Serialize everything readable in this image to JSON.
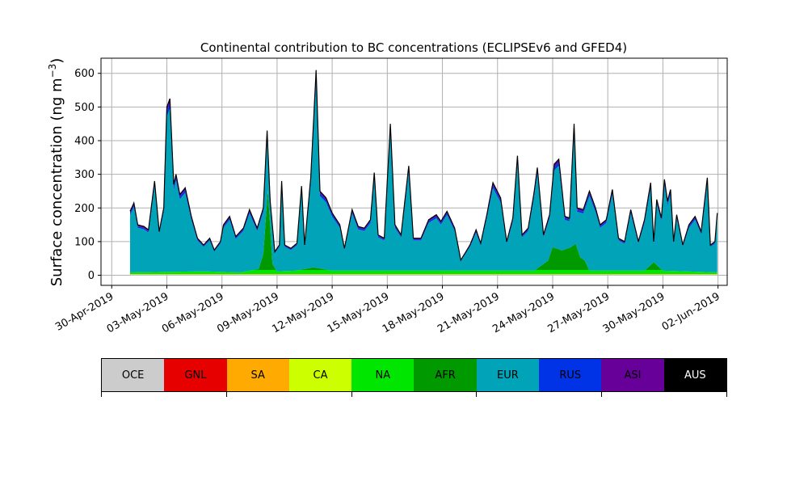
{
  "chart_data": {
    "type": "area",
    "title": "Continental contribution to BC concentrations (ECLIPSEv6 and GFED4)",
    "ylabel": "Surface concentration (ng m",
    "ylabel_sup": "−3",
    "ylabel_tail": ")",
    "xlabel": "",
    "ylim": [
      -30,
      645
    ],
    "xlim": [
      "2019-04-29T10:00",
      "2019-06-02T12:00"
    ],
    "yticks": [
      0,
      100,
      200,
      300,
      400,
      500,
      600
    ],
    "xticks": [
      "2019-04-30",
      "2019-05-03",
      "2019-05-06",
      "2019-05-09",
      "2019-05-12",
      "2019-05-15",
      "2019-05-18",
      "2019-05-21",
      "2019-05-24",
      "2019-05-27",
      "2019-05-30",
      "2019-06-02"
    ],
    "xtick_labels": [
      "30-Apr-2019",
      "03-May-2019",
      "06-May-2019",
      "09-May-2019",
      "12-May-2019",
      "15-May-2019",
      "18-May-2019",
      "21-May-2019",
      "24-May-2019",
      "27-May-2019",
      "30-May-2019",
      "02-Jun-2019"
    ],
    "grid": true,
    "total_profile": [
      [
        "2019-05-01T00:00",
        190
      ],
      [
        "2019-05-01T05:00",
        215
      ],
      [
        "2019-05-01T10:00",
        150
      ],
      [
        "2019-05-01T18:00",
        145
      ],
      [
        "2019-05-02T00:00",
        135
      ],
      [
        "2019-05-02T08:00",
        280
      ],
      [
        "2019-05-02T14:00",
        130
      ],
      [
        "2019-05-02T20:00",
        200
      ],
      [
        "2019-05-03T00:00",
        500
      ],
      [
        "2019-05-03T04:00",
        525
      ],
      [
        "2019-05-03T09:00",
        270
      ],
      [
        "2019-05-03T12:00",
        300
      ],
      [
        "2019-05-03T17:00",
        240
      ],
      [
        "2019-05-04T00:00",
        260
      ],
      [
        "2019-05-04T08:00",
        175
      ],
      [
        "2019-05-04T16:00",
        110
      ],
      [
        "2019-05-05T00:00",
        90
      ],
      [
        "2019-05-05T08:00",
        110
      ],
      [
        "2019-05-05T14:00",
        75
      ],
      [
        "2019-05-05T22:00",
        100
      ],
      [
        "2019-05-06T02:00",
        150
      ],
      [
        "2019-05-06T10:00",
        175
      ],
      [
        "2019-05-06T18:00",
        115
      ],
      [
        "2019-05-07T04:00",
        140
      ],
      [
        "2019-05-07T12:00",
        195
      ],
      [
        "2019-05-07T22:00",
        140
      ],
      [
        "2019-05-08T06:00",
        200
      ],
      [
        "2019-05-08T11:00",
        430
      ],
      [
        "2019-05-08T15:00",
        220
      ],
      [
        "2019-05-08T21:00",
        70
      ],
      [
        "2019-05-09T03:00",
        90
      ],
      [
        "2019-05-09T06:00",
        280
      ],
      [
        "2019-05-09T10:00",
        90
      ],
      [
        "2019-05-09T18:00",
        80
      ],
      [
        "2019-05-10T02:00",
        95
      ],
      [
        "2019-05-10T08:00",
        265
      ],
      [
        "2019-05-10T12:00",
        90
      ],
      [
        "2019-05-10T20:00",
        290
      ],
      [
        "2019-05-11T03:00",
        610
      ],
      [
        "2019-05-11T08:00",
        250
      ],
      [
        "2019-05-11T16:00",
        230
      ],
      [
        "2019-05-12T00:00",
        185
      ],
      [
        "2019-05-12T10:00",
        150
      ],
      [
        "2019-05-12T16:00",
        80
      ],
      [
        "2019-05-13T02:00",
        195
      ],
      [
        "2019-05-13T10:00",
        145
      ],
      [
        "2019-05-13T18:00",
        140
      ],
      [
        "2019-05-14T02:00",
        165
      ],
      [
        "2019-05-14T07:00",
        305
      ],
      [
        "2019-05-14T12:00",
        120
      ],
      [
        "2019-05-14T20:00",
        110
      ],
      [
        "2019-05-15T04:00",
        450
      ],
      [
        "2019-05-15T10:00",
        150
      ],
      [
        "2019-05-15T18:00",
        120
      ],
      [
        "2019-05-16T04:00",
        325
      ],
      [
        "2019-05-16T10:00",
        110
      ],
      [
        "2019-05-16T20:00",
        110
      ],
      [
        "2019-05-17T06:00",
        165
      ],
      [
        "2019-05-17T16:00",
        180
      ],
      [
        "2019-05-17T22:00",
        160
      ],
      [
        "2019-05-18T06:00",
        190
      ],
      [
        "2019-05-18T16:00",
        140
      ],
      [
        "2019-05-19T00:00",
        45
      ],
      [
        "2019-05-19T12:00",
        90
      ],
      [
        "2019-05-19T20:00",
        135
      ],
      [
        "2019-05-20T02:00",
        95
      ],
      [
        "2019-05-20T10:00",
        180
      ],
      [
        "2019-05-20T18:00",
        275
      ],
      [
        "2019-05-21T04:00",
        230
      ],
      [
        "2019-05-21T12:00",
        100
      ],
      [
        "2019-05-21T20:00",
        170
      ],
      [
        "2019-05-22T02:00",
        355
      ],
      [
        "2019-05-22T08:00",
        120
      ],
      [
        "2019-05-22T16:00",
        140
      ],
      [
        "2019-05-23T00:00",
        250
      ],
      [
        "2019-05-23T04:00",
        320
      ],
      [
        "2019-05-23T12:00",
        120
      ],
      [
        "2019-05-23T20:00",
        180
      ],
      [
        "2019-05-24T02:00",
        330
      ],
      [
        "2019-05-24T08:00",
        345
      ],
      [
        "2019-05-24T16:00",
        175
      ],
      [
        "2019-05-24T22:00",
        170
      ],
      [
        "2019-05-25T04:00",
        450
      ],
      [
        "2019-05-25T08:00",
        200
      ],
      [
        "2019-05-25T16:00",
        195
      ],
      [
        "2019-05-26T00:00",
        250
      ],
      [
        "2019-05-26T08:00",
        200
      ],
      [
        "2019-05-26T14:00",
        150
      ],
      [
        "2019-05-26T22:00",
        165
      ],
      [
        "2019-05-27T06:00",
        255
      ],
      [
        "2019-05-27T14:00",
        110
      ],
      [
        "2019-05-27T22:00",
        100
      ],
      [
        "2019-05-28T06:00",
        195
      ],
      [
        "2019-05-28T16:00",
        100
      ],
      [
        "2019-05-29T00:00",
        165
      ],
      [
        "2019-05-29T08:00",
        275
      ],
      [
        "2019-05-29T12:00",
        100
      ],
      [
        "2019-05-29T16:00",
        225
      ],
      [
        "2019-05-29T22:00",
        170
      ],
      [
        "2019-05-30T02:00",
        285
      ],
      [
        "2019-05-30T06:00",
        220
      ],
      [
        "2019-05-30T10:00",
        255
      ],
      [
        "2019-05-30T14:00",
        100
      ],
      [
        "2019-05-30T18:00",
        180
      ],
      [
        "2019-05-31T02:00",
        90
      ],
      [
        "2019-05-31T10:00",
        150
      ],
      [
        "2019-05-31T18:00",
        175
      ],
      [
        "2019-06-01T02:00",
        130
      ],
      [
        "2019-06-01T10:00",
        290
      ],
      [
        "2019-06-01T14:00",
        90
      ],
      [
        "2019-06-01T20:00",
        100
      ],
      [
        "2019-06-01T23:00",
        185
      ]
    ],
    "green_profile": [
      [
        "2019-05-01T00:00",
        5
      ],
      [
        "2019-05-05T00:00",
        8
      ],
      [
        "2019-05-07T00:00",
        5
      ],
      [
        "2019-05-08T00:00",
        15
      ],
      [
        "2019-05-08T06:00",
        60
      ],
      [
        "2019-05-08T12:00",
        250
      ],
      [
        "2019-05-08T18:00",
        30
      ],
      [
        "2019-05-09T00:00",
        8
      ],
      [
        "2019-05-10T00:00",
        10
      ],
      [
        "2019-05-11T00:00",
        20
      ],
      [
        "2019-05-12T00:00",
        10
      ],
      [
        "2019-05-23T00:00",
        10
      ],
      [
        "2019-05-23T18:00",
        40
      ],
      [
        "2019-05-24T00:00",
        80
      ],
      [
        "2019-05-24T12:00",
        70
      ],
      [
        "2019-05-25T00:00",
        80
      ],
      [
        "2019-05-25T06:00",
        90
      ],
      [
        "2019-05-25T12:00",
        50
      ],
      [
        "2019-05-25T18:00",
        40
      ],
      [
        "2019-05-26T00:00",
        10
      ],
      [
        "2019-05-29T00:00",
        10
      ],
      [
        "2019-05-29T12:00",
        35
      ],
      [
        "2019-05-30T00:00",
        10
      ],
      [
        "2019-06-01T23:00",
        5
      ]
    ],
    "series": [
      {
        "name": "OCE",
        "color": "#cccccc"
      },
      {
        "name": "GNL",
        "color": "#e60000"
      },
      {
        "name": "SA",
        "color": "#ffaa00"
      },
      {
        "name": "CA",
        "color": "#ccff00"
      },
      {
        "name": "NA",
        "color": "#00e600"
      },
      {
        "name": "AFR",
        "color": "#009900"
      },
      {
        "name": "EUR",
        "color": "#00a3b8"
      },
      {
        "name": "RUS",
        "color": "#0033e6"
      },
      {
        "name": "ASI",
        "color": "#660099"
      },
      {
        "name": "AUS",
        "color": "#000000"
      }
    ]
  }
}
